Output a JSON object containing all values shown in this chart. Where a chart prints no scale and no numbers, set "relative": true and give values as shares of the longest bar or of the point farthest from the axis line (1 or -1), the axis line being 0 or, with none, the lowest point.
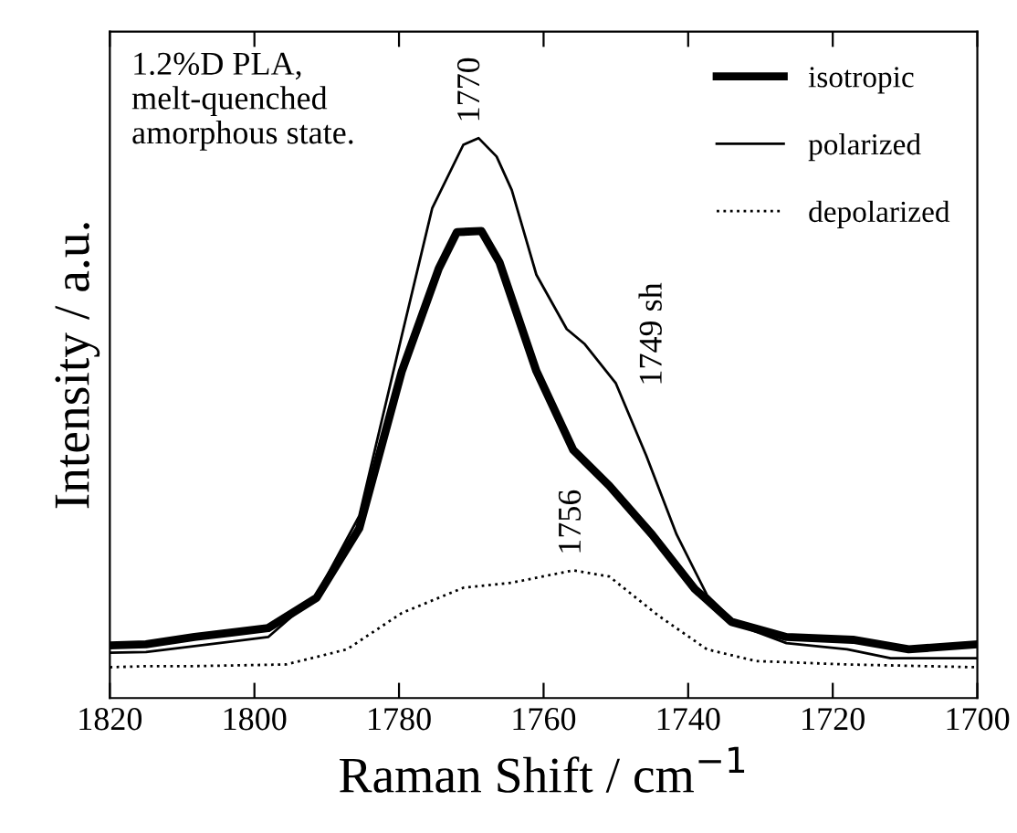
{
  "chart_data": {
    "type": "line",
    "relative": true,
    "xlabel": "Raman Shift / cm$^{−1}$",
    "ylabel": "Intensity / a.u.",
    "xlim": [
      1820,
      1700
    ],
    "xticks": [
      1820,
      1800,
      1780,
      1760,
      1740,
      1720,
      1700
    ],
    "legend": "top right",
    "grid": false,
    "annotations": [
      "1.2%D PLA,\nmelt-quenched\namorphous state.",
      {
        "text": "1770",
        "x": 1770,
        "y": 1.0
      },
      {
        "text": "1749 sh",
        "x": 1749,
        "y": 0.53
      },
      {
        "text": "1756",
        "x": 1756,
        "y": 0.228
      }
    ],
    "series": [
      {
        "name": "isotropic",
        "color": "#000000",
        "line_style": "solid",
        "x": [
          1820,
          1815,
          1808.3,
          1798.1,
          1791.4,
          1785.5,
          1779.6,
          1774.5,
          1772,
          1768.6,
          1766.1,
          1761,
          1755.9,
          1750.9,
          1745,
          1739.1,
          1734,
          1726.4,
          1717.2,
          1709.5,
          1700
        ],
        "values": [
          0.094,
          0.096,
          0.109,
          0.125,
          0.179,
          0.303,
          0.584,
          0.767,
          0.832,
          0.834,
          0.778,
          0.584,
          0.443,
          0.379,
          0.292,
          0.195,
          0.136,
          0.109,
          0.104,
          0.087,
          0.096
        ]
      },
      {
        "name": "polarized",
        "color": "#000000",
        "line_style": "solid",
        "x": [
          1820,
          1815,
          1798.1,
          1791.4,
          1785.5,
          1779.6,
          1775.4,
          1771.1,
          1769,
          1766.5,
          1764.4,
          1761,
          1756.8,
          1754.3,
          1750,
          1745.8,
          1741.6,
          1737.4,
          1733.2,
          1726.4,
          1718,
          1712,
          1700
        ],
        "values": [
          0.081,
          0.082,
          0.109,
          0.184,
          0.325,
          0.648,
          0.875,
          0.988,
          1.0,
          0.967,
          0.907,
          0.756,
          0.659,
          0.632,
          0.562,
          0.433,
          0.292,
          0.184,
          0.131,
          0.098,
          0.087,
          0.071,
          0.071
        ]
      },
      {
        "name": "depolarized",
        "color": "#000000",
        "line_style": "dotted",
        "x": [
          1820,
          1815,
          1808.3,
          1795.6,
          1787.2,
          1779.6,
          1771.1,
          1764.4,
          1755.9,
          1750.9,
          1744.1,
          1737.4,
          1730.6,
          1718,
          1700
        ],
        "values": [
          0.055,
          0.057,
          0.057,
          0.06,
          0.087,
          0.152,
          0.197,
          0.206,
          0.228,
          0.217,
          0.147,
          0.087,
          0.066,
          0.06,
          0.055
        ]
      }
    ]
  }
}
